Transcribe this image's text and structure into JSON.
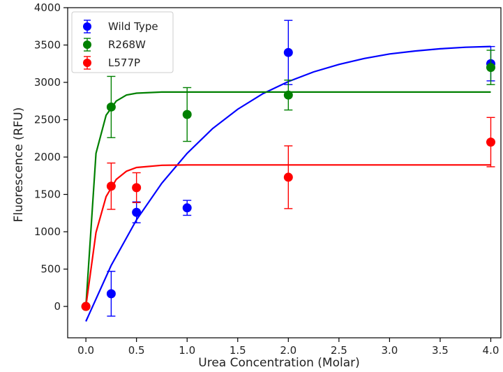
{
  "chart_data": {
    "type": "scatter",
    "title": "",
    "xlabel": "Urea Concentration (Molar)",
    "ylabel": "Fluorescence (RFU)",
    "xlim": [
      -0.18,
      4.1
    ],
    "ylim": [
      -420,
      4000
    ],
    "x_ticks": [
      0.0,
      0.5,
      1.0,
      1.5,
      2.0,
      2.5,
      3.0,
      3.5,
      4.0
    ],
    "x_tick_labels": [
      "0.0",
      "0.5",
      "1.0",
      "1.5",
      "2.0",
      "2.5",
      "3.0",
      "3.5",
      "4.0"
    ],
    "y_ticks": [
      0,
      500,
      1000,
      1500,
      2000,
      2500,
      3000,
      3500,
      4000
    ],
    "y_tick_labels": [
      "0",
      "500",
      "1000",
      "1500",
      "2000",
      "2500",
      "3000",
      "3500",
      "4000"
    ],
    "grid": false,
    "legend_position": "top-left",
    "series": [
      {
        "name": "Wild Type",
        "color": "#0000ff",
        "x": [
          0.25,
          0.5,
          1.0,
          2.0,
          4.0
        ],
        "y": [
          170,
          1260,
          1320,
          3400,
          3250
        ],
        "yerr": [
          300,
          140,
          100,
          430,
          230
        ],
        "fit": {
          "model": "exponential rise",
          "x": [
            0.0,
            0.25,
            0.5,
            0.75,
            1.0,
            1.25,
            1.5,
            1.75,
            2.0,
            2.25,
            2.5,
            2.75,
            3.0,
            3.25,
            3.5,
            3.75,
            4.0
          ],
          "y": [
            -200,
            550,
            1160,
            1650,
            2050,
            2380,
            2640,
            2850,
            3010,
            3140,
            3240,
            3320,
            3380,
            3420,
            3450,
            3470,
            3480
          ]
        }
      },
      {
        "name": "R268W",
        "color": "#008000",
        "x": [
          0.0,
          0.25,
          1.0,
          2.0,
          4.0
        ],
        "y": [
          0,
          2670,
          2570,
          2830,
          3200
        ],
        "yerr": [
          0,
          410,
          360,
          200,
          230
        ],
        "fit": {
          "model": "exponential rise",
          "x": [
            0.0,
            0.1,
            0.2,
            0.3,
            0.4,
            0.5,
            0.75,
            1.0,
            2.0,
            3.0,
            4.0
          ],
          "y": [
            0,
            2050,
            2560,
            2750,
            2830,
            2855,
            2870,
            2870,
            2870,
            2870,
            2870
          ]
        }
      },
      {
        "name": "L577P",
        "color": "#ff0000",
        "x": [
          0.0,
          0.25,
          0.5,
          2.0,
          4.0
        ],
        "y": [
          0,
          1610,
          1590,
          1730,
          2200
        ],
        "yerr": [
          0,
          310,
          200,
          420,
          330
        ],
        "fit": {
          "model": "exponential rise",
          "x": [
            0.0,
            0.1,
            0.2,
            0.3,
            0.4,
            0.5,
            0.75,
            1.0,
            2.0,
            3.0,
            4.0
          ],
          "y": [
            0,
            990,
            1470,
            1700,
            1810,
            1860,
            1890,
            1895,
            1895,
            1895,
            1895
          ]
        }
      }
    ]
  }
}
